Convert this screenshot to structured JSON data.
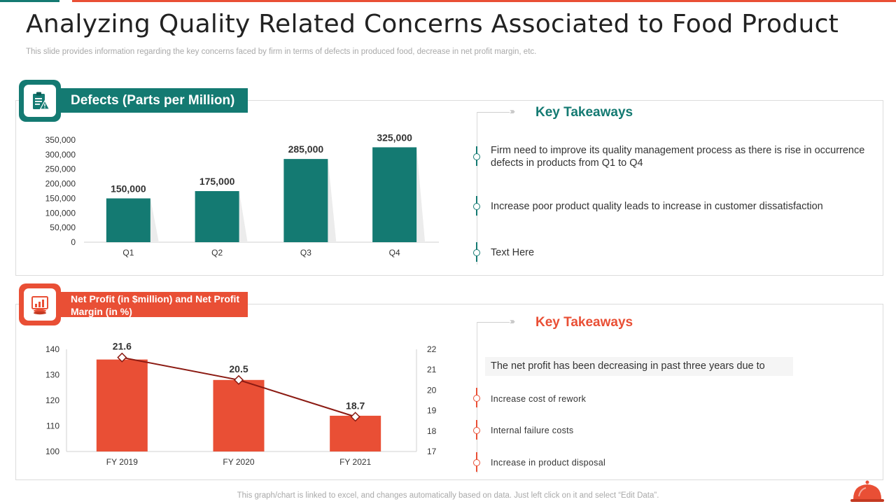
{
  "slide": {
    "title": "Analyzing Quality Related Concerns Associated to Food Product",
    "subtitle": "This slide provides information regarding the key concerns faced by firm in terms of defects in produced food, decrease in net profit margin, etc.",
    "footer": "This graph/chart is linked to excel,  and changes automatically based on data. Just left click on it and select “Edit Data”."
  },
  "defects_section": {
    "heading": "Defects (Parts per Million)",
    "icon": "clipboard-warning-icon",
    "takeaways_title": "Key Takeaways",
    "takeaways": [
      "Firm need to improve its quality management process as there is rise in occurrence defects in products from Q1 to Q4",
      "Increase poor product quality leads to increase in customer dissatisfaction",
      "Text Here"
    ]
  },
  "profit_section": {
    "heading": "Net Profit (in $million) and Net Profit Margin (in %)",
    "icon": "profit-chart-icon",
    "takeaways_title": "Key Takeaways",
    "intro": "The net profit has been decreasing in past three years due to",
    "takeaways": [
      "Increase cost of rework",
      "Internal failure costs",
      "Increase in product disposal"
    ]
  },
  "colors": {
    "teal": "#147a72",
    "red": "#e94f35",
    "line": "#8b1a12"
  },
  "chart_data": [
    {
      "type": "bar",
      "title": "Defects (Parts per Million)",
      "categories": [
        "Q1",
        "Q2",
        "Q3",
        "Q4"
      ],
      "values": [
        150000,
        175000,
        285000,
        325000
      ],
      "value_labels": [
        "150,000",
        "175,000",
        "285,000",
        "325,000"
      ],
      "ylim": [
        0,
        350000
      ],
      "yticks": [
        0,
        50000,
        100000,
        150000,
        200000,
        250000,
        300000,
        350000
      ],
      "ytick_labels": [
        "0",
        "50,000",
        "100,000",
        "150,000",
        "200,000",
        "250,000",
        "300,000",
        "350,000"
      ],
      "grid": false,
      "legend": "none"
    },
    {
      "type": "bar",
      "title": "Net Profit (in $million) and Net Profit Margin (in %)",
      "categories": [
        "FY 2019",
        "FY 2020",
        "FY 2021"
      ],
      "series": [
        {
          "name": "Net Profit (in $million)",
          "type": "bar",
          "axis": "left",
          "values": [
            136,
            128,
            114
          ]
        },
        {
          "name": "Net Profit Margin (in %)",
          "type": "line",
          "axis": "right",
          "values": [
            21.6,
            20.5,
            18.7
          ],
          "value_labels": [
            "21.6",
            "20.5",
            "18.7"
          ]
        }
      ],
      "ylim": [
        100,
        140
      ],
      "yticks": [
        100,
        110,
        120,
        130,
        140
      ],
      "ytick_labels": [
        "100",
        "110",
        "120",
        "130",
        "140"
      ],
      "y2lim": [
        17,
        22
      ],
      "y2ticks": [
        17,
        18,
        19,
        20,
        21,
        22
      ],
      "y2tick_labels": [
        "17",
        "18",
        "19",
        "20",
        "21",
        "22"
      ],
      "grid": false,
      "legend": "none"
    }
  ]
}
